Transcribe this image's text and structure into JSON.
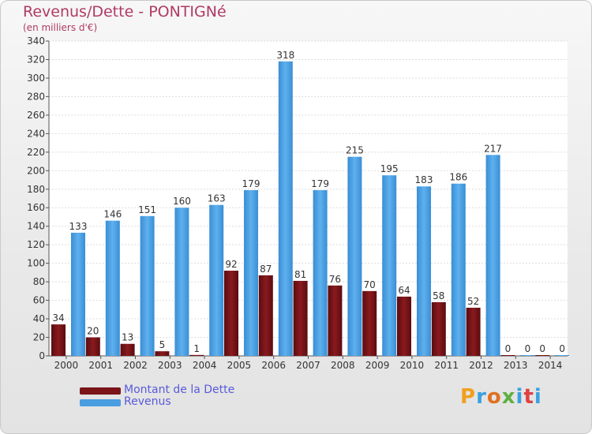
{
  "title": "Revenus/Dette - PONTIGNé",
  "subtitle": "(en milliers d'€)",
  "colors": {
    "title": "#b03a64",
    "debt": "#7a1418",
    "revenue": "#4a9de0",
    "legend_text": "#5a5adc"
  },
  "legend": [
    {
      "label": "Montant de la Dette",
      "color": "#7a1418"
    },
    {
      "label": "Revenus",
      "color": "#4a9de0"
    }
  ],
  "logo": {
    "letters": [
      "P",
      "r",
      "o",
      "x",
      "i",
      "t",
      "i"
    ],
    "colors": [
      "#f0a020",
      "#3aa0e0",
      "#e07020",
      "#60b040",
      "#3aa0e0",
      "#e04040",
      "#3aa0e0"
    ]
  },
  "chart_data": {
    "type": "bar",
    "categories": [
      "2000",
      "2001",
      "2002",
      "2003",
      "2004",
      "2005",
      "2006",
      "2007",
      "2008",
      "2009",
      "2010",
      "2011",
      "2012",
      "2013",
      "2014"
    ],
    "series": [
      {
        "name": "Montant de la Dette",
        "values": [
          34,
          20,
          13,
          5,
          1,
          92,
          87,
          81,
          76,
          70,
          64,
          58,
          52,
          0,
          0
        ]
      },
      {
        "name": "Revenus",
        "values": [
          133,
          146,
          151,
          160,
          163,
          179,
          318,
          179,
          215,
          195,
          183,
          186,
          217,
          0,
          0
        ]
      }
    ],
    "ylim": [
      0,
      340
    ],
    "yticks": [
      0,
      20,
      40,
      60,
      80,
      100,
      120,
      140,
      160,
      180,
      200,
      220,
      240,
      260,
      280,
      300,
      320,
      340
    ],
    "grid": true,
    "legend_position": "bottom-left"
  }
}
